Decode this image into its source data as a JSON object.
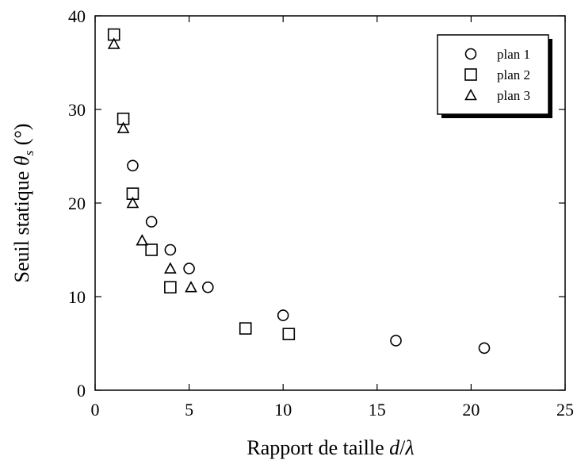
{
  "chart_data": {
    "type": "scatter",
    "xlabel": "Rapport de taille d/λ",
    "ylabel": "Seuil statique θs (°)",
    "xlim": [
      0,
      25
    ],
    "ylim": [
      0,
      40
    ],
    "xticks": [
      0,
      5,
      10,
      15,
      20,
      25
    ],
    "yticks": [
      0,
      10,
      20,
      30,
      40
    ],
    "grid": false,
    "legend_position": "top-right",
    "series": [
      {
        "name": "plan 1",
        "marker": "circle",
        "points": [
          {
            "x": 2,
            "y": 24
          },
          {
            "x": 3,
            "y": 18
          },
          {
            "x": 4,
            "y": 15
          },
          {
            "x": 5,
            "y": 13
          },
          {
            "x": 6,
            "y": 11
          },
          {
            "x": 10,
            "y": 8
          },
          {
            "x": 16,
            "y": 5.3
          },
          {
            "x": 20.7,
            "y": 4.5
          }
        ]
      },
      {
        "name": "plan 2",
        "marker": "square",
        "points": [
          {
            "x": 1,
            "y": 38
          },
          {
            "x": 1.5,
            "y": 29
          },
          {
            "x": 2,
            "y": 21
          },
          {
            "x": 3,
            "y": 15
          },
          {
            "x": 4,
            "y": 11
          },
          {
            "x": 8,
            "y": 6.6
          },
          {
            "x": 10.3,
            "y": 6
          }
        ]
      },
      {
        "name": "plan 3",
        "marker": "triangle",
        "points": [
          {
            "x": 1,
            "y": 37
          },
          {
            "x": 1.5,
            "y": 28
          },
          {
            "x": 2,
            "y": 20
          },
          {
            "x": 2.5,
            "y": 16
          },
          {
            "x": 4,
            "y": 13
          },
          {
            "x": 5.1,
            "y": 11
          }
        ]
      }
    ]
  }
}
